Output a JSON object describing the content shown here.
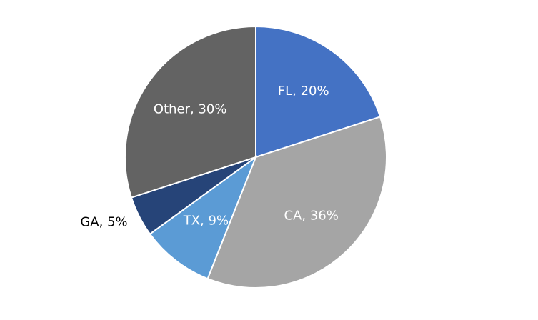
{
  "chart_data": {
    "type": "pie",
    "values": [
      20,
      36,
      9,
      5,
      30
    ],
    "value_labels": [
      "FL, 20%",
      "CA, 36%",
      "TX, 9%",
      "GA, 5%",
      "Other, 30%"
    ],
    "colors": [
      "#4472c4",
      "#a5a5a5",
      "#5b9bd5",
      "#264478",
      "#636363"
    ]
  }
}
